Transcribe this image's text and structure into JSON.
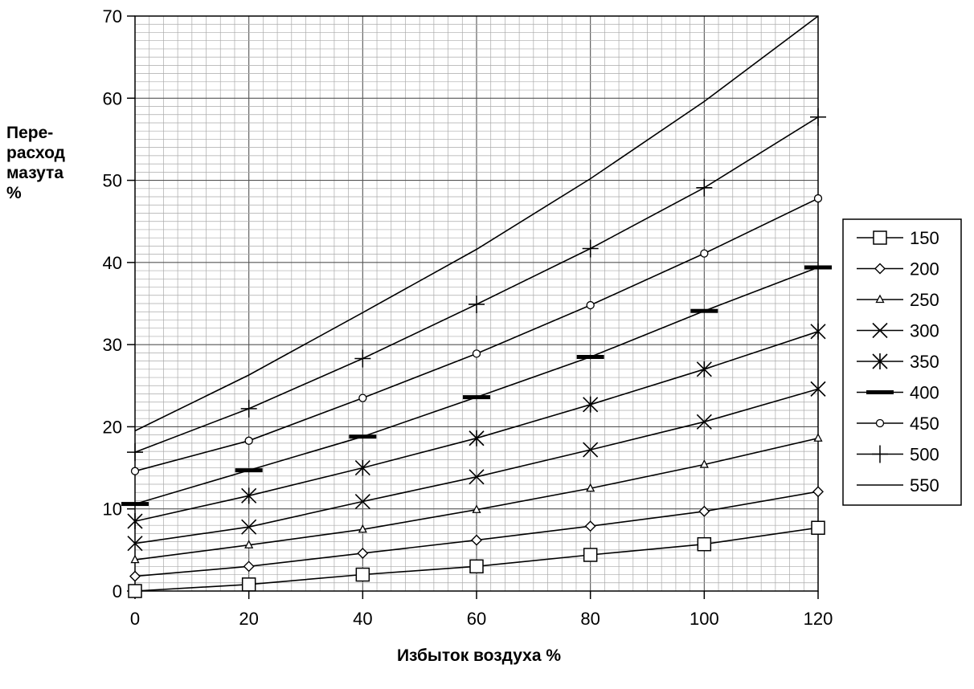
{
  "chart_data": {
    "type": "line",
    "title": "",
    "ylabel_lines": [
      "Пере-",
      "расход",
      "мазута",
      "%"
    ],
    "xlabel": "Избыток воздуха %",
    "xlim": [
      0,
      120
    ],
    "ylim": [
      0,
      70
    ],
    "x_ticks": [
      0,
      20,
      40,
      60,
      80,
      100,
      120
    ],
    "y_ticks": [
      0,
      10,
      20,
      30,
      40,
      50,
      60,
      70
    ],
    "grid": true,
    "legend_position": "right",
    "x": [
      0,
      20,
      40,
      60,
      80,
      100,
      120
    ],
    "series": [
      {
        "name": "150",
        "marker": "square",
        "values": [
          0,
          0.8,
          2.0,
          3.0,
          4.4,
          5.7,
          7.7
        ]
      },
      {
        "name": "200",
        "marker": "diamond",
        "values": [
          1.8,
          3.0,
          4.6,
          6.2,
          7.9,
          9.7,
          12.1
        ]
      },
      {
        "name": "250",
        "marker": "triangle",
        "values": [
          3.8,
          5.6,
          7.5,
          9.9,
          12.5,
          15.4,
          18.6
        ]
      },
      {
        "name": "300",
        "marker": "x",
        "values": [
          5.8,
          7.8,
          10.9,
          13.9,
          17.2,
          20.6,
          24.6
        ]
      },
      {
        "name": "350",
        "marker": "asterisk",
        "values": [
          8.5,
          11.6,
          15.0,
          18.6,
          22.7,
          27.0,
          31.6
        ]
      },
      {
        "name": "400",
        "marker": "dash",
        "values": [
          10.6,
          14.7,
          18.8,
          23.6,
          28.5,
          34.1,
          39.4
        ]
      },
      {
        "name": "450",
        "marker": "circle",
        "values": [
          14.6,
          18.3,
          23.5,
          28.9,
          34.8,
          41.1,
          47.8
        ]
      },
      {
        "name": "500",
        "marker": "plus",
        "values": [
          16.9,
          22.2,
          28.3,
          34.9,
          41.7,
          49.1,
          57.7
        ]
      },
      {
        "name": "550",
        "marker": "none",
        "values": [
          19.5,
          26.3,
          33.9,
          41.6,
          50.2,
          59.6,
          70.0
        ]
      }
    ]
  }
}
